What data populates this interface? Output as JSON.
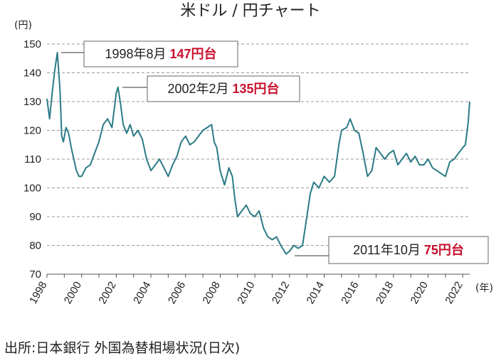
{
  "chart_data": {
    "type": "line",
    "title": "米ドル / 円チャート",
    "ylabel": "(円)",
    "xlabel": "(年)",
    "source": "出所:日本銀行 外国為替相場状況(日次)",
    "ylim": [
      70,
      150
    ],
    "xlim": [
      1998.0,
      2022.4
    ],
    "yticks": [
      70,
      80,
      90,
      100,
      110,
      120,
      130,
      140,
      150
    ],
    "xticks": [
      "1998",
      "2000",
      "2002",
      "2004",
      "2006",
      "2008",
      "2010",
      "2012",
      "2014",
      "2016",
      "2018",
      "2020",
      "2022"
    ],
    "series": [
      {
        "name": "USD/JPY",
        "color": "#2b7b86",
        "x": [
          1998.0,
          1998.15,
          1998.3,
          1998.45,
          1998.6,
          1998.75,
          1998.85,
          1998.95,
          1999.1,
          1999.25,
          1999.4,
          1999.55,
          1999.7,
          1999.85,
          2000.0,
          2000.25,
          2000.5,
          2000.75,
          2001.0,
          2001.25,
          2001.5,
          2001.75,
          2002.0,
          2002.1,
          2002.25,
          2002.4,
          2002.6,
          2002.8,
          2003.0,
          2003.25,
          2003.5,
          2003.75,
          2004.0,
          2004.25,
          2004.5,
          2004.75,
          2005.0,
          2005.25,
          2005.5,
          2005.75,
          2006.0,
          2006.25,
          2006.5,
          2006.75,
          2007.0,
          2007.25,
          2007.5,
          2007.65,
          2007.8,
          2008.0,
          2008.25,
          2008.5,
          2008.7,
          2008.85,
          2009.0,
          2009.25,
          2009.5,
          2009.75,
          2010.0,
          2010.25,
          2010.5,
          2010.75,
          2011.0,
          2011.25,
          2011.5,
          2011.8,
          2012.0,
          2012.25,
          2012.5,
          2012.75,
          2013.0,
          2013.2,
          2013.4,
          2013.7,
          2014.0,
          2014.3,
          2014.6,
          2014.85,
          2015.0,
          2015.3,
          2015.5,
          2015.75,
          2016.0,
          2016.25,
          2016.5,
          2016.75,
          2017.0,
          2017.25,
          2017.5,
          2017.75,
          2018.0,
          2018.25,
          2018.5,
          2018.75,
          2019.0,
          2019.25,
          2019.5,
          2019.75,
          2020.0,
          2020.25,
          2020.5,
          2020.75,
          2021.0,
          2021.25,
          2021.5,
          2021.75,
          2022.0,
          2022.15,
          2022.3,
          2022.4
        ],
        "values": [
          131,
          124,
          133,
          141,
          147,
          134,
          118,
          116,
          121,
          119,
          114,
          110,
          106,
          104,
          104,
          107,
          108,
          112,
          116,
          122,
          124,
          121,
          133,
          135,
          129,
          122,
          119,
          122,
          118,
          120,
          117,
          110,
          106,
          108,
          110,
          107,
          104,
          108,
          111,
          116,
          118,
          115,
          116,
          118,
          120,
          121,
          122,
          116,
          114,
          106,
          101,
          107,
          104,
          96,
          90,
          92,
          94,
          91,
          90,
          92,
          86,
          83,
          82,
          83,
          80,
          77,
          78,
          80,
          79,
          80,
          90,
          98,
          102,
          100,
          104,
          102,
          104,
          115,
          120,
          121,
          124,
          120,
          119,
          112,
          104,
          106,
          114,
          112,
          110,
          112,
          113,
          108,
          110,
          112,
          109,
          111,
          108,
          108,
          110,
          107,
          106,
          105,
          104,
          109,
          110,
          112,
          114,
          115,
          122,
          130
        ]
      }
    ],
    "annotations": [
      {
        "label": "1998年8月",
        "value": "147円台",
        "x": 1998.6,
        "y": 147
      },
      {
        "label": "2002年2月",
        "value": "135円台",
        "x": 2002.1,
        "y": 135
      },
      {
        "label": "2011年10月",
        "value": "75円台",
        "x": 2011.8,
        "y": 75.8
      }
    ]
  }
}
